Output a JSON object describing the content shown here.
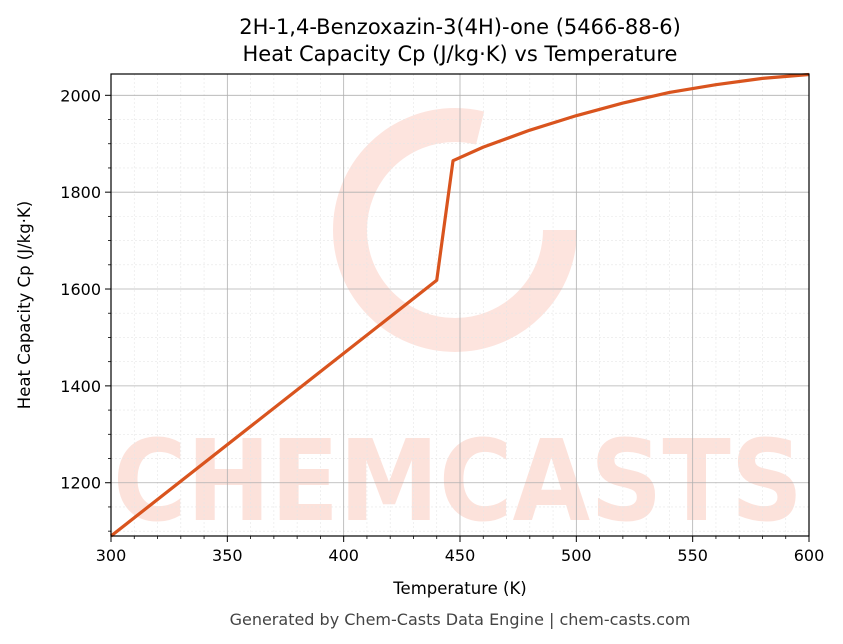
{
  "chart_data": {
    "type": "line",
    "title_line1": "2H-1,4-Benzoxazin-3(4H)-one (5466-88-6)",
    "title_line2": "Heat Capacity Cp (J/kg·K) vs Temperature",
    "xlabel": "Temperature (K)",
    "ylabel": "Heat Capacity Cp (J/kg·K)",
    "xlim": [
      300,
      600
    ],
    "ylim": [
      1090,
      2044
    ],
    "xticks": [
      300,
      350,
      400,
      450,
      500,
      550,
      600
    ],
    "yticks": [
      1200,
      1400,
      1600,
      1800,
      2000
    ],
    "grid": true,
    "line_color": "#d9541e",
    "series": [
      {
        "x": [
          300,
          440,
          447,
          460,
          480,
          500,
          520,
          540,
          560,
          580,
          600
        ],
        "y": [
          1090,
          1618,
          1865,
          1893,
          1928,
          1958,
          1984,
          2006,
          2022,
          2035,
          2043
        ]
      }
    ]
  },
  "watermark": {
    "text": "CHEMCASTS",
    "color": "#fcd9d0"
  },
  "footer": "Generated by Chem-Casts Data Engine | chem-casts.com"
}
